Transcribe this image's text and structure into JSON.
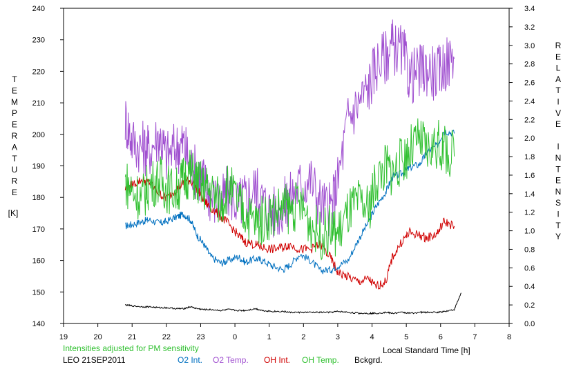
{
  "chart_data": {
    "type": "line",
    "xlabel": "Local Standard Time [h]",
    "ylabel_left_letters": [
      "T",
      "E",
      "M",
      "P",
      "E",
      "R",
      "A",
      "T",
      "U",
      "R",
      "E"
    ],
    "ylabel_left_unit": "[K]",
    "ylabel_right_letters": [
      "R",
      "E",
      "L",
      "A",
      "T",
      "I",
      "V",
      "E",
      "",
      "I",
      "N",
      "T",
      "E",
      "N",
      "S",
      "I",
      "T",
      "Y"
    ],
    "xlim": [
      19,
      32
    ],
    "ylim_left": [
      140,
      240
    ],
    "ylim_right": [
      0.0,
      3.4
    ],
    "x_ticks": [
      "19",
      "20",
      "21",
      "22",
      "23",
      "0",
      "1",
      "2",
      "3",
      "4",
      "5",
      "6",
      "7",
      "8"
    ],
    "y_ticks_left": [
      "140",
      "150",
      "160",
      "170",
      "180",
      "190",
      "200",
      "210",
      "220",
      "230",
      "240"
    ],
    "y_ticks_right": [
      "0.0",
      "0.2",
      "0.4",
      "0.6",
      "0.8",
      "1.0",
      "1.2",
      "1.4",
      "1.6",
      "1.8",
      "2.0",
      "2.2",
      "2.4",
      "2.6",
      "2.8",
      "3.0",
      "3.2",
      "3.4"
    ],
    "annotation": "Intensities adjusted for PM sensitivity",
    "station_label": "LEO 21SEP2011",
    "grid": false,
    "series": [
      {
        "name": "O2 Int.",
        "axis": "right",
        "color": "#0070c0",
        "x": [
          20.8,
          21.0,
          21.3,
          21.5,
          21.8,
          22.0,
          22.3,
          22.5,
          22.7,
          22.9,
          23.1,
          23.3,
          23.6,
          23.8,
          24.1,
          24.3,
          24.6,
          24.8,
          25.1,
          25.4,
          25.6,
          25.9,
          26.2,
          26.5,
          26.8,
          27.0,
          27.3,
          27.6,
          27.9,
          28.1,
          28.4,
          28.6,
          28.9,
          29.1,
          29.4,
          29.6,
          29.9,
          30.1,
          30.4
        ],
        "y": [
          1.05,
          1.07,
          1.1,
          1.12,
          1.08,
          1.1,
          1.15,
          1.18,
          1.12,
          0.95,
          0.85,
          0.72,
          0.65,
          0.68,
          0.72,
          0.66,
          0.7,
          0.68,
          0.62,
          0.58,
          0.63,
          0.75,
          0.68,
          0.57,
          0.58,
          0.62,
          0.68,
          0.9,
          1.1,
          1.25,
          1.42,
          1.58,
          1.62,
          1.68,
          1.72,
          1.85,
          1.92,
          2.08,
          2.05
        ]
      },
      {
        "name": "O2 Temp.",
        "axis": "left",
        "color": "#a050d0",
        "x": [
          20.8,
          21.0,
          21.3,
          21.5,
          21.8,
          22.0,
          22.3,
          22.5,
          22.7,
          22.9,
          23.1,
          23.3,
          23.6,
          23.8,
          24.1,
          24.3,
          24.6,
          24.8,
          25.1,
          25.4,
          25.6,
          25.9,
          26.2,
          26.5,
          26.8,
          27.0,
          27.3,
          27.6,
          27.9,
          28.1,
          28.4,
          28.6,
          28.9,
          29.1,
          29.4,
          29.6,
          29.9,
          30.1,
          30.4
        ],
        "y": [
          205,
          198,
          196,
          195,
          200,
          193,
          196,
          197,
          190,
          188,
          185,
          180,
          178,
          182,
          178,
          180,
          183,
          179,
          175,
          177,
          180,
          184,
          186,
          178,
          176,
          185,
          205,
          210,
          215,
          222,
          225,
          228,
          226,
          218,
          220,
          221,
          219,
          222,
          224
        ]
      },
      {
        "name": "OH Int.",
        "axis": "right",
        "color": "#d00000",
        "x": [
          20.8,
          21.0,
          21.3,
          21.5,
          21.8,
          22.0,
          22.3,
          22.5,
          22.7,
          22.9,
          23.1,
          23.3,
          23.6,
          23.8,
          24.1,
          24.3,
          24.6,
          24.8,
          25.1,
          25.4,
          25.6,
          25.9,
          26.2,
          26.5,
          26.8,
          27.0,
          27.3,
          27.6,
          27.9,
          28.1,
          28.4,
          28.6,
          28.9,
          29.1,
          29.4,
          29.6,
          29.9,
          30.1,
          30.4
        ],
        "y": [
          1.45,
          1.5,
          1.55,
          1.52,
          1.4,
          1.35,
          1.45,
          1.52,
          1.55,
          1.45,
          1.32,
          1.25,
          1.15,
          1.08,
          0.95,
          0.88,
          0.85,
          0.82,
          0.8,
          0.82,
          0.85,
          0.8,
          0.8,
          0.85,
          0.7,
          0.55,
          0.5,
          0.45,
          0.48,
          0.4,
          0.45,
          0.72,
          0.9,
          0.98,
          0.95,
          0.92,
          0.97,
          1.1,
          1.05
        ]
      },
      {
        "name": "OH Temp.",
        "axis": "left",
        "color": "#30c030",
        "x": [
          20.8,
          21.0,
          21.3,
          21.5,
          21.8,
          22.0,
          22.3,
          22.5,
          22.7,
          22.9,
          23.1,
          23.3,
          23.6,
          23.8,
          24.1,
          24.3,
          24.6,
          24.8,
          25.1,
          25.4,
          25.6,
          25.9,
          26.2,
          26.5,
          26.8,
          27.0,
          27.3,
          27.6,
          27.9,
          28.1,
          28.4,
          28.6,
          28.9,
          29.1,
          29.4,
          29.6,
          29.9,
          30.1,
          30.4
        ],
        "y": [
          185,
          182,
          180,
          184,
          186,
          183,
          182,
          186,
          188,
          185,
          183,
          182,
          178,
          184,
          178,
          175,
          172,
          173,
          175,
          177,
          176,
          178,
          172,
          168,
          170,
          168,
          175,
          178,
          176,
          185,
          190,
          188,
          192,
          195,
          198,
          195,
          197,
          195,
          193
        ]
      },
      {
        "name": "Bckgrd.",
        "axis": "right",
        "color": "#000000",
        "x": [
          20.8,
          21.0,
          21.3,
          21.5,
          21.8,
          22.0,
          22.3,
          22.5,
          22.7,
          22.9,
          23.1,
          23.3,
          23.6,
          23.8,
          24.1,
          24.3,
          24.6,
          24.8,
          25.1,
          25.4,
          25.6,
          25.9,
          26.2,
          26.5,
          26.8,
          27.0,
          27.3,
          27.6,
          27.9,
          28.1,
          28.4,
          28.6,
          28.9,
          29.1,
          29.4,
          29.6,
          29.9,
          30.1,
          30.4,
          30.6
        ],
        "y": [
          0.2,
          0.19,
          0.18,
          0.18,
          0.17,
          0.17,
          0.16,
          0.16,
          0.18,
          0.16,
          0.15,
          0.15,
          0.14,
          0.15,
          0.14,
          0.14,
          0.16,
          0.14,
          0.13,
          0.13,
          0.12,
          0.12,
          0.12,
          0.12,
          0.12,
          0.13,
          0.12,
          0.11,
          0.11,
          0.11,
          0.12,
          0.11,
          0.12,
          0.11,
          0.12,
          0.12,
          0.12,
          0.13,
          0.15,
          0.33
        ]
      }
    ]
  }
}
